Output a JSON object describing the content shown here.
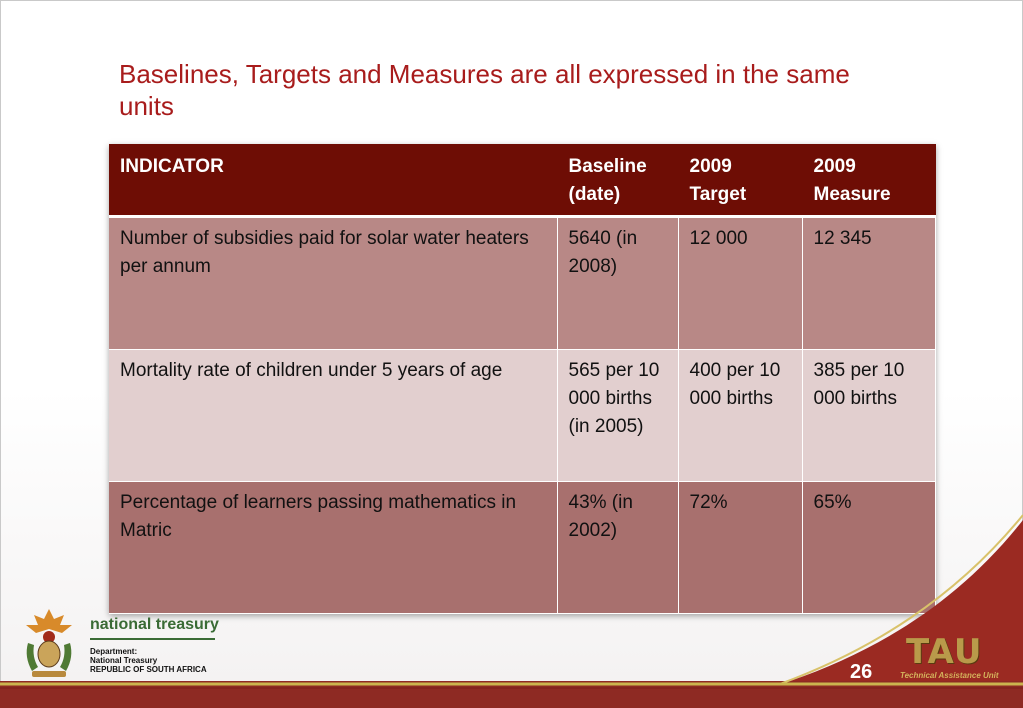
{
  "slide": {
    "title": "Baselines, Targets and Measures are all expressed in the same units",
    "page_number": "26"
  },
  "table": {
    "headers": [
      "INDICATOR",
      "Baseline (date)",
      "2009 Target",
      "2009 Measure"
    ],
    "rows": [
      [
        "Number of subsidies paid for solar water heaters per annum",
        "5640 (in 2008)",
        "12 000",
        "12 345"
      ],
      [
        "Mortality rate of children under 5 years of age",
        "565 per 10 000 births (in 2005)",
        "400 per 10 000 births",
        "385 per 10 000 births"
      ],
      [
        "Percentage of learners passing mathematics in Matric",
        "43% (in 2002)",
        "72%",
        "65%"
      ]
    ]
  },
  "footer": {
    "treasury_name": "national treasury",
    "dept_lines": [
      "Department:",
      "National Treasury",
      "REPUBLIC OF SOUTH AFRICA"
    ],
    "tau_logo": "TAU",
    "tau_subtitle": "Technical Assistance Unit"
  },
  "colors": {
    "title": "#a81c1c",
    "header_bg": "#6e0d05",
    "row_a": "#b88886",
    "row_b": "#e2cfcf",
    "row_c": "#a8706e",
    "footer_band": "#8e2a23"
  }
}
